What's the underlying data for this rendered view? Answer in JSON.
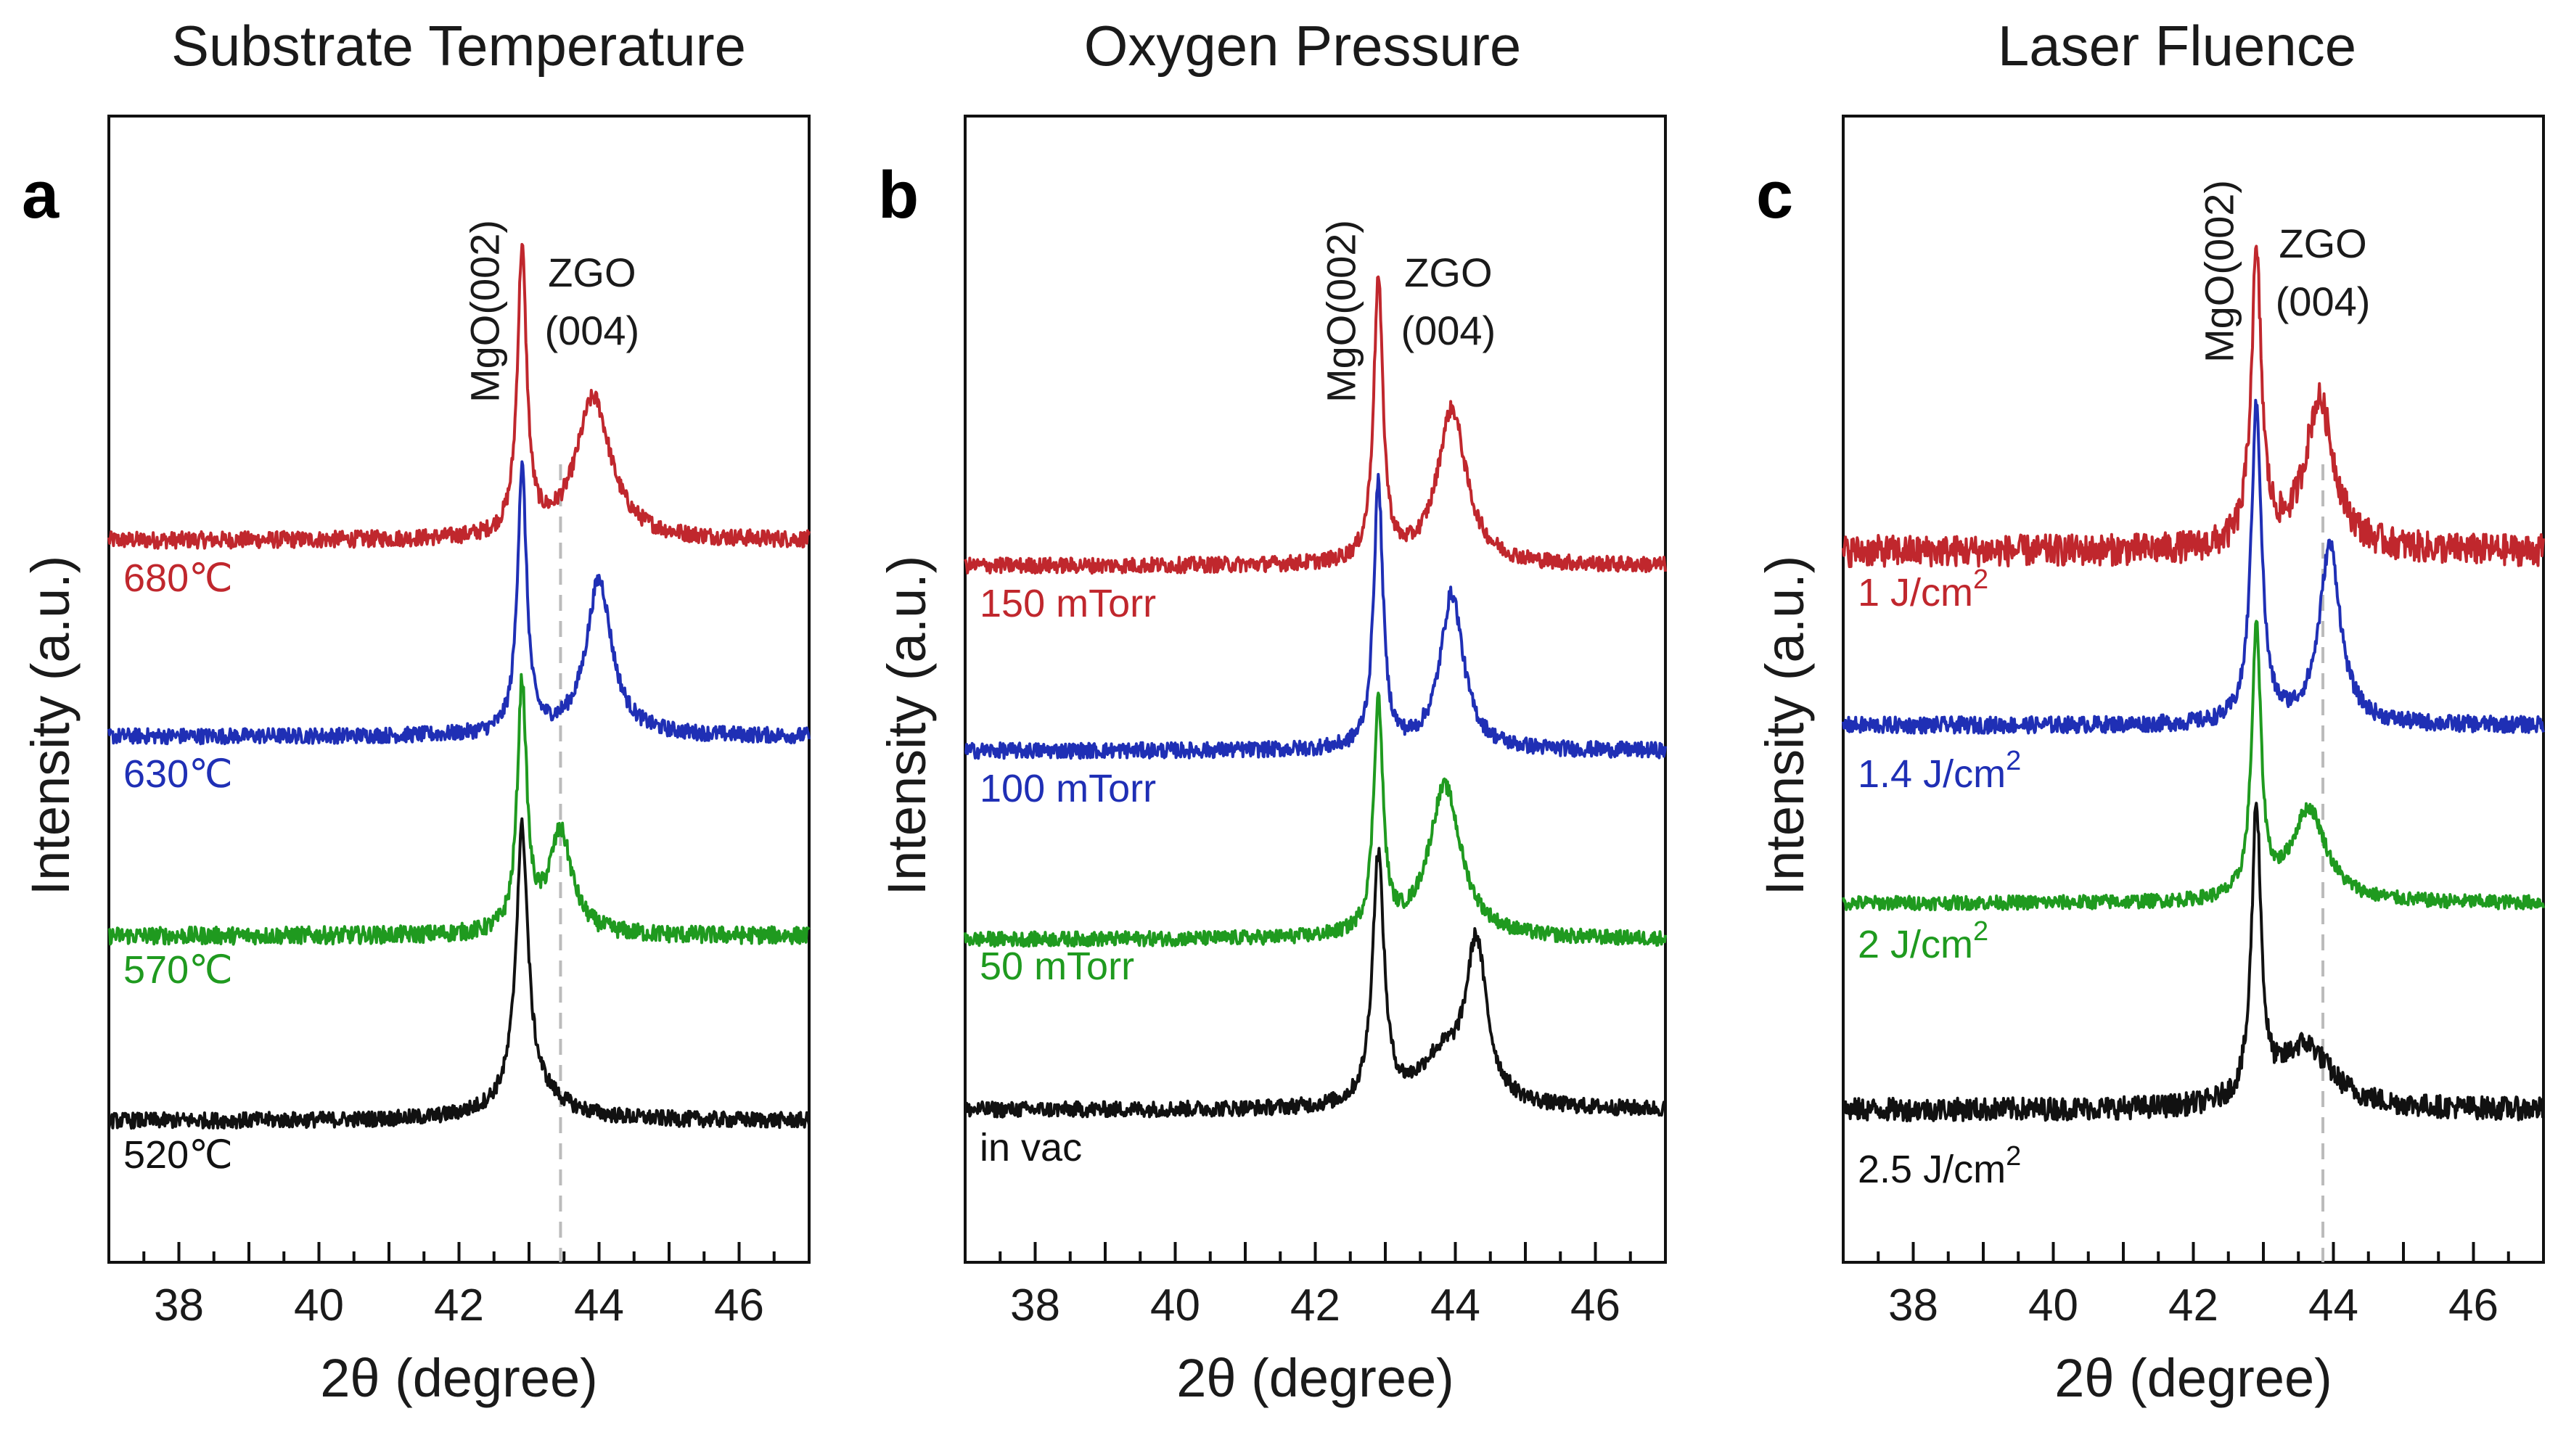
{
  "colors": {
    "red": "#c0272d",
    "blue": "#1f2fb5",
    "green": "#1f9a1f",
    "black": "#111111",
    "guide": "#bbbbbb"
  },
  "chart_data": [
    {
      "type": "line",
      "panel_label": "a",
      "title": "Substrate Temperature",
      "xlabel": "2θ (degree)",
      "ylabel": "Intensity (a.u.)",
      "xlim": [
        37,
        47
      ],
      "xticks": [
        38,
        40,
        42,
        44,
        46
      ],
      "grid": false,
      "peak_labels": [
        {
          "text": "MgO(002)",
          "x": 42.9,
          "orientation": "vertical"
        },
        {
          "text": "ZGO",
          "x": 43.9
        },
        {
          "text": "(004)",
          "x": 43.9
        }
      ],
      "guide_line_x": 43.45,
      "series": [
        {
          "name": "680℃",
          "color": "red",
          "baseline": 0,
          "peaks": [
            {
              "x": 42.9,
              "h": 1.7,
              "w": 0.08
            },
            {
              "x": 43.92,
              "h": 0.85,
              "w": 0.3
            }
          ],
          "noise": 0.05
        },
        {
          "name": "630℃",
          "color": "blue",
          "baseline": 0,
          "peaks": [
            {
              "x": 42.9,
              "h": 1.7,
              "w": 0.08
            },
            {
              "x": 44.0,
              "h": 1.0,
              "w": 0.22
            }
          ],
          "noise": 0.05
        },
        {
          "name": "570℃",
          "color": "green",
          "baseline": 0,
          "peaks": [
            {
              "x": 42.9,
              "h": 1.7,
              "w": 0.08
            },
            {
              "x": 43.45,
              "h": 0.7,
              "w": 0.2
            }
          ],
          "noise": 0.06
        },
        {
          "name": "520℃",
          "color": "black",
          "baseline": 0,
          "peaks": [
            {
              "x": 42.9,
              "h": 1.7,
              "w": 0.1
            },
            {
              "x": 43.0,
              "h": 0.2,
              "w": 0.5
            }
          ],
          "noise": 0.05
        }
      ]
    },
    {
      "type": "line",
      "panel_label": "b",
      "title": "Oxygen Pressure",
      "xlabel": "2θ (degree)",
      "ylabel": "Intensity (a.u.)",
      "xlim": [
        37,
        47
      ],
      "xticks": [
        38,
        40,
        42,
        44,
        46
      ],
      "grid": false,
      "peak_labels": [
        {
          "text": "MgO(002)",
          "x": 42.9,
          "orientation": "vertical"
        },
        {
          "text": "ZGO",
          "x": 43.9
        },
        {
          "text": "(004)",
          "x": 43.9
        }
      ],
      "series": [
        {
          "name": "150 mTorr",
          "color": "red",
          "baseline": 0,
          "peaks": [
            {
              "x": 42.9,
              "h": 1.8,
              "w": 0.08
            },
            {
              "x": 43.95,
              "h": 1.0,
              "w": 0.25
            }
          ],
          "noise": 0.05
        },
        {
          "name": "100 mTorr",
          "color": "blue",
          "baseline": 0,
          "peaks": [
            {
              "x": 42.9,
              "h": 1.7,
              "w": 0.08
            },
            {
              "x": 43.95,
              "h": 1.0,
              "w": 0.2
            }
          ],
          "noise": 0.05
        },
        {
          "name": "50 mTorr",
          "color": "green",
          "baseline": 0,
          "peaks": [
            {
              "x": 42.9,
              "h": 1.6,
              "w": 0.08
            },
            {
              "x": 43.85,
              "h": 1.05,
              "w": 0.28
            }
          ],
          "noise": 0.05
        },
        {
          "name": "in vac",
          "color": "black",
          "baseline": 0,
          "peaks": [
            {
              "x": 42.9,
              "h": 1.6,
              "w": 0.1
            },
            {
              "x": 44.3,
              "h": 1.0,
              "w": 0.18
            },
            {
              "x": 43.8,
              "h": 0.3,
              "w": 0.4
            }
          ],
          "noise": 0.05
        }
      ]
    },
    {
      "type": "line",
      "panel_label": "c",
      "title": "Laser Fluence",
      "xlabel": "2θ (degree)",
      "ylabel": "Intensity (a.u.)",
      "xlim": [
        37,
        47
      ],
      "xticks": [
        38,
        40,
        42,
        44,
        46
      ],
      "grid": false,
      "peak_labels": [
        {
          "text": "MgO(002)",
          "x": 42.9,
          "orientation": "vertical"
        },
        {
          "text": "ZGO",
          "x": 43.85
        },
        {
          "text": "(004)",
          "x": 43.85
        }
      ],
      "guide_line_x": 43.85,
      "series": [
        {
          "name": "1 J/cm",
          "sup": "2",
          "color": "red",
          "baseline": 0,
          "peaks": [
            {
              "x": 42.9,
              "h": 2.2,
              "w": 0.09
            },
            {
              "x": 43.8,
              "h": 1.15,
              "w": 0.25
            }
          ],
          "noise": 0.12
        },
        {
          "name": "1.4 J/cm",
          "sup": "2",
          "color": "blue",
          "baseline": 0,
          "peaks": [
            {
              "x": 42.9,
              "h": 2.3,
              "w": 0.09
            },
            {
              "x": 43.95,
              "h": 1.3,
              "w": 0.18
            }
          ],
          "noise": 0.06
        },
        {
          "name": "2 J/cm",
          "sup": "2",
          "color": "green",
          "baseline": 0,
          "peaks": [
            {
              "x": 42.9,
              "h": 2.3,
              "w": 0.08
            },
            {
              "x": 43.65,
              "h": 0.8,
              "w": 0.3
            }
          ],
          "noise": 0.06
        },
        {
          "name": "2.5 J/cm",
          "sup": "2",
          "color": "black",
          "baseline": 0,
          "peaks": [
            {
              "x": 42.9,
              "h": 2.3,
              "w": 0.08
            },
            {
              "x": 43.6,
              "h": 0.5,
              "w": 0.45
            }
          ],
          "noise": 0.09
        }
      ]
    }
  ]
}
